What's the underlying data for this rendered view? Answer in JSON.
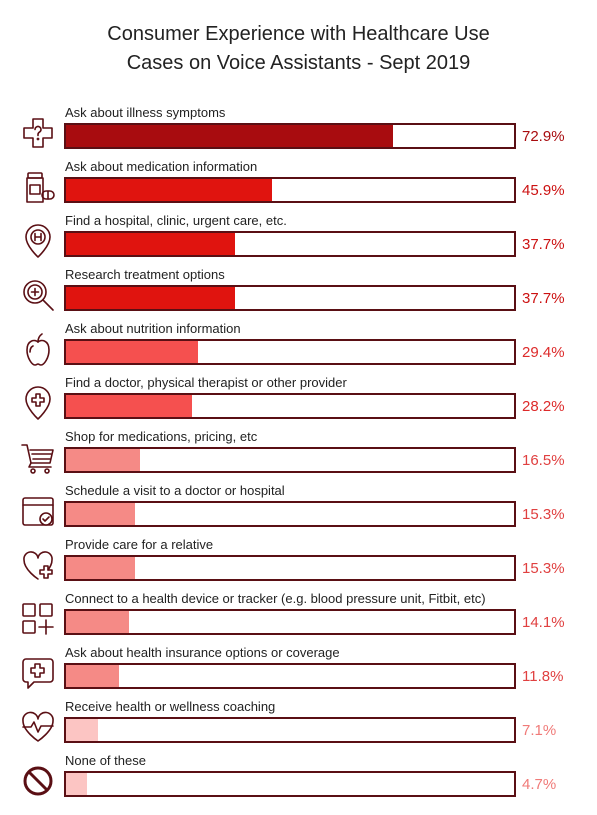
{
  "title_line1": "Consumer Experience with Healthcare Use",
  "title_line2": "Cases on Voice Assistants - Sept 2019",
  "chart_data": {
    "type": "bar",
    "orientation": "horizontal",
    "title": "Consumer Experience with Healthcare Use Cases on Voice Assistants - Sept 2019",
    "unit": "%",
    "xlim": [
      0,
      100
    ],
    "grid": false,
    "legend": "none",
    "categories": [
      "Ask about illness symptoms",
      "Ask about medication information",
      "Find a hospital, clinic, urgent care, etc.",
      "Research treatment options",
      "Ask about nutrition information",
      "Find a doctor, physical therapist or other provider",
      "Shop for medications, pricing, etc",
      "Schedule a visit to a doctor or hospital",
      "Provide care for a relative",
      "Connect to a health device or tracker (e.g. blood pressure unit, Fitbit, etc)",
      "Ask about health insurance options or coverage",
      "Receive health or wellness coaching",
      "None of these"
    ],
    "values": [
      72.9,
      45.9,
      37.7,
      37.7,
      29.4,
      28.2,
      16.5,
      15.3,
      15.3,
      14.1,
      11.8,
      7.1,
      4.7
    ],
    "value_labels": [
      "72.9%",
      "45.9%",
      "37.7%",
      "37.7%",
      "29.4%",
      "28.2%",
      "16.5%",
      "15.3%",
      "15.3%",
      "14.1%",
      "11.8%",
      "7.1%",
      "4.7%"
    ],
    "bar_colors": [
      "#a80c0f",
      "#e0140f",
      "#e0140f",
      "#e0140f",
      "#f5504f",
      "#f5504f",
      "#f58a86",
      "#f58a86",
      "#f58a86",
      "#f58a86",
      "#f58a86",
      "#fcc5c3",
      "#fcc5c3"
    ],
    "label_colors": [
      "#a80c0f",
      "#cc1111",
      "#cc1111",
      "#cc1111",
      "#dd2a2a",
      "#dd2a2a",
      "#e04040",
      "#e04040",
      "#e04040",
      "#e04040",
      "#e04040",
      "#f07a78",
      "#f07a78"
    ],
    "icons": [
      "question-cross-icon",
      "medicine-bottle-icon",
      "hospital-pin-icon",
      "magnifier-plus-icon",
      "apple-icon",
      "location-plus-icon",
      "shopping-cart-icon",
      "calendar-check-icon",
      "heart-plus-icon",
      "device-grid-icon",
      "chat-plus-icon",
      "heartbeat-icon",
      "prohibited-icon"
    ]
  }
}
